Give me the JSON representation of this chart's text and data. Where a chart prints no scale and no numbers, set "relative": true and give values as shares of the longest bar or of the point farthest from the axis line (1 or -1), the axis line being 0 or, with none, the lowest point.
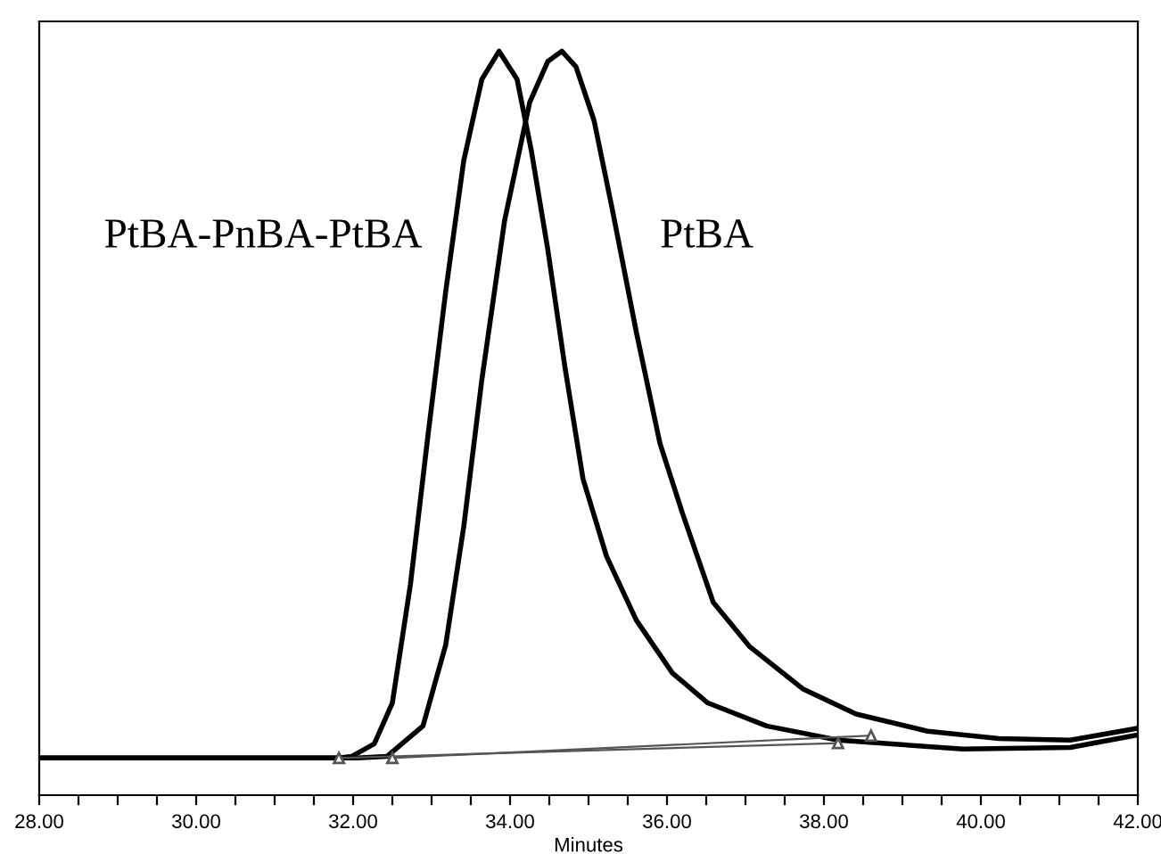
{
  "chart_data": {
    "type": "line",
    "relative": true,
    "xlabel": "Minutes",
    "xlim": [
      28,
      42
    ],
    "xticks": [
      {
        "value": 28,
        "label": "28.00"
      },
      {
        "value": 28.5,
        "label": null
      },
      {
        "value": 29,
        "label": null
      },
      {
        "value": 29.5,
        "label": null
      },
      {
        "value": 30,
        "label": "30.00"
      },
      {
        "value": 30.5,
        "label": null
      },
      {
        "value": 31,
        "label": null
      },
      {
        "value": 31.5,
        "label": null
      },
      {
        "value": 32,
        "label": "32.00"
      },
      {
        "value": 32.5,
        "label": null
      },
      {
        "value": 33,
        "label": null
      },
      {
        "value": 33.5,
        "label": null
      },
      {
        "value": 34,
        "label": "34.00"
      },
      {
        "value": 34.5,
        "label": null
      },
      {
        "value": 35,
        "label": null
      },
      {
        "value": 35.5,
        "label": null
      },
      {
        "value": 36,
        "label": "36.00"
      },
      {
        "value": 36.5,
        "label": null
      },
      {
        "value": 37,
        "label": null
      },
      {
        "value": 37.5,
        "label": null
      },
      {
        "value": 38,
        "label": "38.00"
      },
      {
        "value": 38.5,
        "label": null
      },
      {
        "value": 39,
        "label": null
      },
      {
        "value": 39.5,
        "label": null
      },
      {
        "value": 40,
        "label": "40.00"
      },
      {
        "value": 40.5,
        "label": null
      },
      {
        "value": 41,
        "label": null
      },
      {
        "value": 41.5,
        "label": null
      },
      {
        "value": 42,
        "label": "42.00"
      }
    ],
    "tick_labels": "x",
    "grid": false,
    "legend": false,
    "marker": "none",
    "line_style": "solid",
    "series": [
      {
        "name": "PtBA-PnBA-PtBA",
        "color": "#000000",
        "x": [
          28.0,
          29.77,
          31.82,
          31.98,
          32.27,
          32.5,
          32.73,
          32.95,
          33.18,
          33.41,
          33.64,
          33.86,
          34.09,
          34.27,
          34.48,
          34.7,
          34.93,
          35.23,
          35.61,
          36.07,
          36.52,
          37.27,
          38.18,
          39.77,
          41.14,
          42.0
        ],
        "values": [
          0.05,
          0.05,
          0.05,
          0.052,
          0.069,
          0.124,
          0.283,
          0.48,
          0.677,
          0.853,
          0.962,
          1.0,
          0.962,
          0.867,
          0.734,
          0.575,
          0.425,
          0.321,
          0.235,
          0.164,
          0.124,
          0.093,
          0.074,
          0.062,
          0.064,
          0.081
        ]
      },
      {
        "name": "PtBA",
        "color": "#000000",
        "x": [
          28.0,
          29.77,
          32.05,
          32.43,
          32.89,
          33.18,
          33.41,
          33.64,
          33.93,
          34.25,
          34.48,
          34.66,
          34.84,
          35.07,
          35.3,
          35.61,
          35.91,
          36.2,
          36.59,
          37.05,
          37.73,
          38.41,
          39.32,
          40.23,
          41.14,
          42.0
        ],
        "values": [
          0.05,
          0.05,
          0.05,
          0.052,
          0.093,
          0.202,
          0.361,
          0.558,
          0.772,
          0.931,
          0.986,
          1.0,
          0.979,
          0.907,
          0.789,
          0.622,
          0.473,
          0.378,
          0.259,
          0.2,
          0.143,
          0.109,
          0.086,
          0.076,
          0.074,
          0.09
        ]
      },
      {
        "color": "#555555",
        "x": [
          31.82,
          38.18
        ],
        "values": [
          0.05,
          0.07
        ],
        "marker": "triangle"
      },
      {
        "color": "#555555",
        "x": [
          32.5,
          38.6
        ],
        "values": [
          0.05,
          0.08
        ],
        "marker": "triangle"
      }
    ]
  }
}
